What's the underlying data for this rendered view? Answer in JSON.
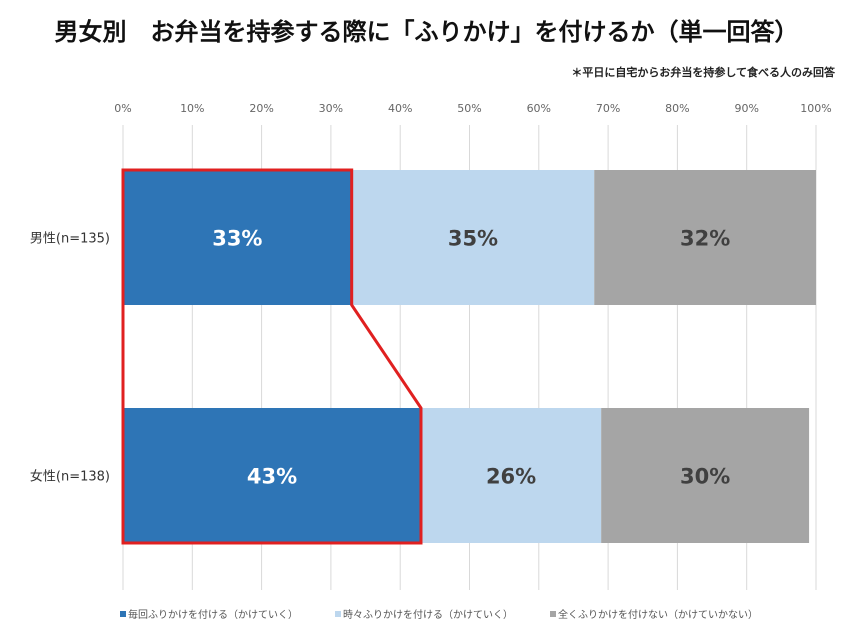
{
  "chart_data": {
    "type": "bar",
    "orientation": "horizontal-stacked-100",
    "title": "男女別　お弁当を持参する際に「ふりかけ」を付けるか（単一回答）",
    "subtitle": "＊平日に自宅からお弁当を持参して食べる人のみ回答",
    "categories": [
      "男性(n=135)",
      "女性(n=138)"
    ],
    "series": [
      {
        "name": "毎回ふりかけを付ける（かけていく）",
        "values": [
          33,
          43
        ],
        "labels": [
          "33%",
          "43%"
        ],
        "color": "#2e75b6",
        "label_color": "#ffffff"
      },
      {
        "name": "時々ふりかけを付ける（かけていく）",
        "values": [
          35,
          26
        ],
        "labels": [
          "35%",
          "26%"
        ],
        "color": "#bdd7ee",
        "label_color": "#404040"
      },
      {
        "name": "全くふりかけを付けない（かけていかない）",
        "values": [
          32,
          30
        ],
        "labels": [
          "32%",
          "30%"
        ],
        "color": "#a5a5a5",
        "label_color": "#404040"
      }
    ],
    "xlim": [
      0,
      100
    ],
    "xticks": [
      "0%",
      "10%",
      "20%",
      "30%",
      "40%",
      "50%",
      "60%",
      "70%",
      "80%",
      "90%",
      "100%"
    ],
    "grid": true,
    "legend": "bottom",
    "highlight": {
      "series": 0,
      "color": "#e02020"
    }
  }
}
